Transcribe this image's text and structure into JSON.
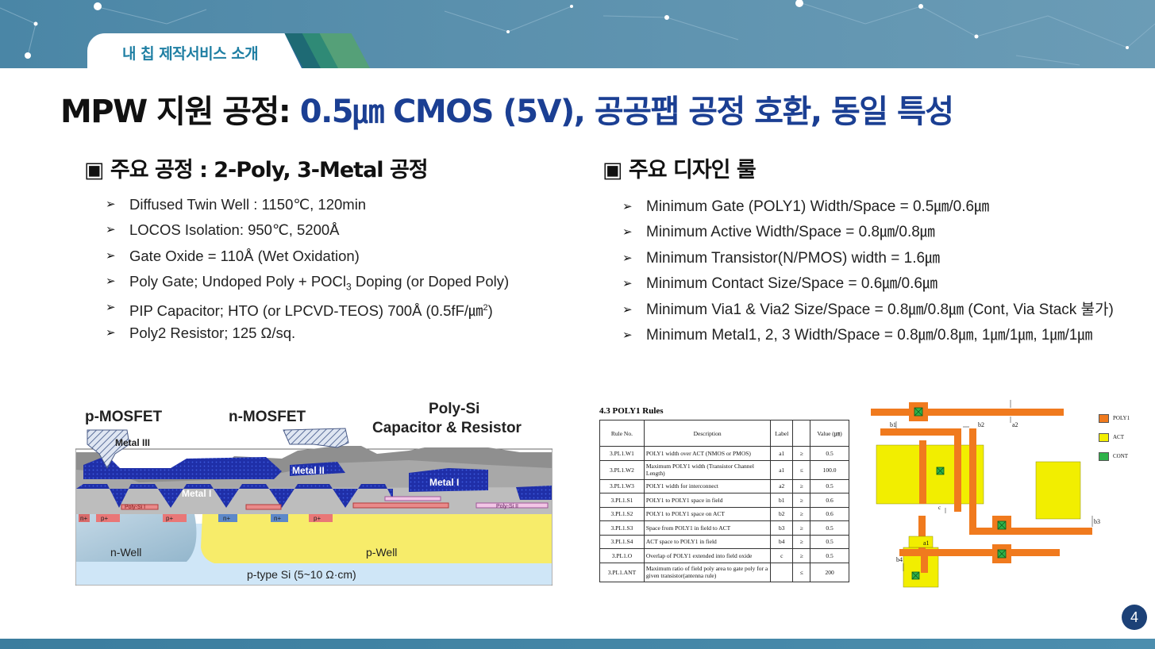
{
  "header": {
    "section_tab": "내 칩 제작서비스 소개"
  },
  "title": {
    "prefix": "MPW 지원 공정:",
    "highlight": "0.5㎛ CMOS (5V), 공공팹 공정 호환, 동일 특성"
  },
  "left": {
    "heading": "▣ 주요 공정 : 2-Poly, 3-Metal 공정",
    "bullet_glyph": "➢",
    "items": [
      "Diffused Twin Well : 1150℃, 120min",
      "LOCOS Isolation: 950℃, 5200Å",
      "Gate Oxide = 110Å (Wet Oxidation)",
      "Poly Gate; Undoped Poly + POCl",
      "PIP Capacitor; HTO (or LPCVD-TEOS) 700Å  (0.5fF/㎛",
      "Poly2 Resistor; 125 Ω/sq."
    ],
    "item4_sub": "3",
    "item4_tail": " Doping (or Doped Poly)",
    "item5_sup": "2",
    "item5_tail": ")"
  },
  "right": {
    "heading": "▣ 주요 디자인 룰",
    "items": [
      "Minimum Gate (POLY1) Width/Space = 0.5㎛/0.6㎛",
      "Minimum Active Width/Space = 0.8㎛/0.8㎛",
      "Minimum Transistor(N/PMOS) width = 1.6㎛",
      "Minimum Contact Size/Space = 0.6㎛/0.6㎛",
      "Minimum Via1 & Via2 Size/Space = 0.8㎛/0.8㎛ (Cont, Via Stack 불가)",
      "Minimum Metal1, 2, 3 Width/Space = 0.8㎛/0.8㎛, 1㎛/1㎛, 1㎛/1㎛"
    ]
  },
  "cross_section": {
    "labels": {
      "pmos": "p-MOSFET",
      "nmos": "n-MOSFET",
      "polysi": "Poly-Si",
      "cap_res": "Capacitor & Resistor",
      "metal3": "Metal III",
      "metal2": "Metal II",
      "metal1a": "Metal I",
      "metal1b": "Metal I",
      "nwell": "n-Well",
      "pwell": "p-Well",
      "substrate": "p-type Si (5~10 Ω·cm)",
      "nplus": "n+",
      "pplus": "p+",
      "poly1": "Poly-Si I",
      "poly2": "Poly-Si II"
    }
  },
  "rules_table": {
    "title": "4.3 POLY1 Rules",
    "headers": [
      "Rule No.",
      "Description",
      "Label",
      "",
      "Value (㎛)"
    ],
    "rows": [
      [
        "3.PL1.W1",
        "POLY1  width over ACT (NMOS  or PMOS)",
        "a1",
        "≥",
        "0.5"
      ],
      [
        "3.PL1.W2",
        "Maximum  POLY1  width (Transistor Channel Length)",
        "a1",
        "≤",
        "100.0"
      ],
      [
        "3.PL1.W3",
        "POLY1  width for interconnect",
        "a2",
        "≥",
        "0.5"
      ],
      [
        "3.PL1.S1",
        "POLY1  to POLY1  space in field",
        "b1",
        "≥",
        "0.6"
      ],
      [
        "3.PL1.S2",
        "POLY1  to POLY1  space on ACT",
        "b2",
        "≥",
        "0.6"
      ],
      [
        "3.PL1.S3",
        "Space from  POLY1  in field  to ACT",
        "b3",
        "≥",
        "0.5"
      ],
      [
        "3.PL1.S4",
        "ACT space to POLY1  in field",
        "b4",
        "≥",
        "0.5"
      ],
      [
        "3.PL1.O",
        "Overlap of POLY1  extended into field  oxide",
        "c",
        "≥",
        "0.5"
      ],
      [
        "3.PL1.ANT",
        "Maximum  ratio of field poly area to gate poly for a given transistor(antenna rule)",
        "",
        "≤",
        "200"
      ]
    ]
  },
  "layout_diagram": {
    "labels": [
      "b1",
      "b2",
      "a2",
      "c",
      "b3",
      "a1",
      "b4"
    ],
    "legend": [
      "POLY1",
      "ACT",
      "CONT"
    ],
    "colors": {
      "poly": "#f07a1e",
      "act": "#f2ee00",
      "cont": "#2fb24a"
    }
  },
  "footer": {
    "page_number": "4"
  }
}
